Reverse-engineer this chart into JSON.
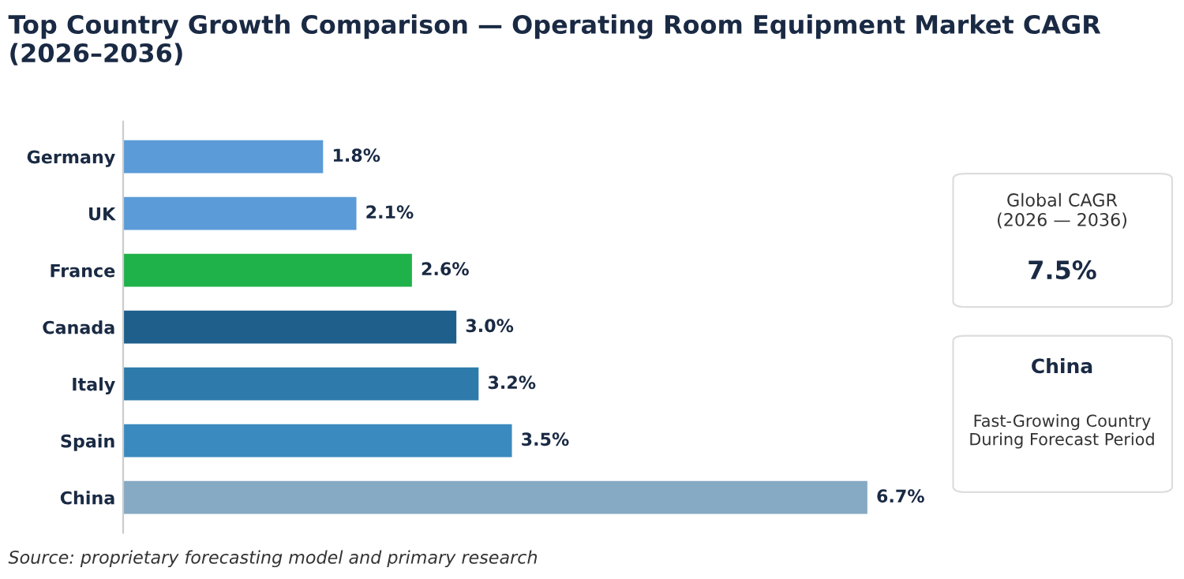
{
  "chart_data": {
    "type": "bar",
    "orientation": "horizontal",
    "title": "Top Country Growth Comparison — Operating Room Equipment Market CAGR (2026–2036)",
    "categories": [
      "Germany",
      "UK",
      "France",
      "Canada",
      "Italy",
      "Spain",
      "China"
    ],
    "values": [
      1.8,
      2.1,
      2.6,
      3.0,
      3.2,
      3.5,
      6.7
    ],
    "colors": [
      "#5a9bd8",
      "#5a9bd8",
      "#1fb14a",
      "#1f5f8b",
      "#2e7bab",
      "#3a8abf",
      "#86a9c4"
    ],
    "value_labels": [
      "1.8%",
      "2.1%",
      "2.6%",
      "3.0%",
      "3.2%",
      "3.5%",
      "6.7%"
    ],
    "tick_labels": "y",
    "grid": false,
    "legend": false,
    "annotations": [
      "Global CAGR\n(2026 — 2036)",
      "7.5%",
      "China",
      "Fast-Growing Country\nDuring Forecast Period",
      "Source: proprietary forecasting model and primary research"
    ]
  }
}
